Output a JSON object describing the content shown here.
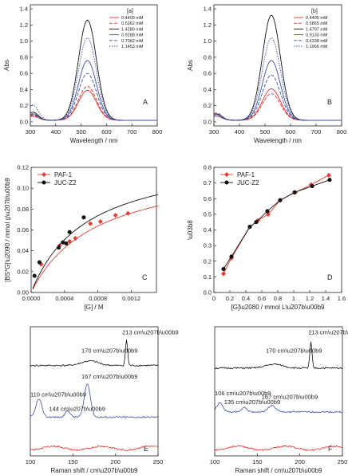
{
  "chart_data": [
    {
      "panel": "A",
      "type": "line",
      "title": "[a]",
      "xlabel": "Wavelength / nm",
      "ylabel": "Abs",
      "xlim": [
        300,
        800
      ],
      "ylim": [
        -0.05,
        1.45
      ],
      "xticks": [
        300,
        400,
        500,
        600,
        700,
        800
      ],
      "yticks": [
        0.0,
        0.2,
        0.4,
        0.6,
        0.8,
        1.0,
        1.2,
        1.4
      ],
      "legend_position": "top-right",
      "series": [
        {
          "name": "0.4409 mM",
          "color": "#e0302b",
          "dash": "solid",
          "peak_x": 525,
          "peak": 0.37,
          "base": 0.02,
          "shoulder": 0.05
        },
        {
          "name": "0.5362 mM",
          "color": "#e0302b",
          "dash": "dash",
          "peak_x": 525,
          "peak": 0.42,
          "base": 0.02,
          "shoulder": 0.06
        },
        {
          "name": "1.4289 mM",
          "color": "#111111",
          "dash": "solid",
          "peak_x": 525,
          "peak": 1.24,
          "base": 0.02,
          "shoulder": 0.1
        },
        {
          "name": "0.9288 mM",
          "color": "#3a4fa8",
          "dash": "solid",
          "peak_x": 525,
          "peak": 0.74,
          "base": 0.02,
          "shoulder": 0.08
        },
        {
          "name": "0.7082 mM",
          "color": "#3a4fa8",
          "dash": "dash",
          "peak_x": 525,
          "peak": 0.58,
          "base": 0.02,
          "shoulder": 0.07
        },
        {
          "name": "1.1453 mM",
          "color": "#3a4fa8",
          "dash": "dot",
          "peak_x": 525,
          "peak": 1.02,
          "base": 0.02,
          "shoulder": 0.19
        }
      ]
    },
    {
      "panel": "B",
      "type": "line",
      "title": "[b]",
      "xlabel": "Wavelength / nm",
      "ylabel": "Abs",
      "xlim": [
        300,
        800
      ],
      "ylim": [
        -0.05,
        1.45
      ],
      "xticks": [
        300,
        400,
        500,
        600,
        700,
        800
      ],
      "yticks": [
        0.0,
        0.2,
        0.4,
        0.6,
        0.8,
        1.0,
        1.2,
        1.4
      ],
      "legend_position": "top-right",
      "series": [
        {
          "name": "0.4405 mM",
          "color": "#e0302b",
          "dash": "solid",
          "peak_x": 525,
          "peak": 0.39,
          "base": 0.02,
          "shoulder": 0.05
        },
        {
          "name": "0.5865 mM",
          "color": "#e0302b",
          "dash": "dash",
          "peak_x": 525,
          "peak": 0.33,
          "base": 0.02,
          "shoulder": 0.09
        },
        {
          "name": "1.4797 mM",
          "color": "#111111",
          "dash": "solid",
          "peak_x": 525,
          "peak": 1.3,
          "base": 0.02,
          "shoulder": 0.07
        },
        {
          "name": "0.9133 mM",
          "color": "#3a4fa8",
          "dash": "solid",
          "peak_x": 525,
          "peak": 0.74,
          "base": 0.02,
          "shoulder": 0.08
        },
        {
          "name": "0.6338 mM",
          "color": "#3a4fa8",
          "dash": "dash",
          "peak_x": 525,
          "peak": 0.56,
          "base": 0.02,
          "shoulder": 0.07
        },
        {
          "name": "1.1966 mM",
          "color": "#3a4fa8",
          "dash": "dot",
          "peak_x": 525,
          "peak": 1.02,
          "base": 0.02,
          "shoulder": 0.05
        }
      ]
    },
    {
      "panel": "C",
      "type": "scatter",
      "xlabel": "[G] / M",
      "ylabel": "[BS*G]\\u2090 / mmol g\\u207b\\u00b9",
      "xlim": [
        0,
        0.0015
      ],
      "ylim": [
        0,
        0.12
      ],
      "xticks": [
        0.0,
        0.0004,
        0.0008,
        0.0012
      ],
      "xtick_labels": [
        "0.0000",
        "0.0004",
        "0.0008",
        "0.0012"
      ],
      "yticks": [
        0.0,
        0.02,
        0.04,
        0.06,
        0.08,
        0.1,
        0.12
      ],
      "ytick_labels": [
        "0.00",
        "0.02",
        "0.04",
        "0.06",
        "0.08",
        "0.10",
        "0.12"
      ],
      "legend_position": "top-left",
      "series": [
        {
          "name": "PAF-1",
          "color": "#e53b33",
          "marker": "diamond",
          "x": [
            0.00012,
            0.00034,
            0.00046,
            0.00053,
            0.00071,
            0.00083,
            0.00101,
            0.00116
          ],
          "y": [
            0.027,
            0.045,
            0.049,
            0.052,
            0.066,
            0.068,
            0.074,
            0.076
          ],
          "fit": {
            "qmax": 0.125,
            "K": 1300
          }
        },
        {
          "name": "JUC-Z2",
          "color": "#111111",
          "marker": "circle",
          "x": [
            4e-05,
            0.0001,
            0.00033,
            0.00038,
            0.00042,
            0.00046,
            0.00063
          ],
          "y": [
            0.016,
            0.029,
            0.043,
            0.048,
            0.047,
            0.058,
            0.072
          ],
          "fit": {
            "qmax": 0.135,
            "K": 1500
          }
        }
      ]
    },
    {
      "panel": "D",
      "type": "scatter",
      "xlabel": "[G]\\u2080 / mmol L\\u207b\\u00b9",
      "ylabel": "\\u03b8",
      "xlim": [
        0,
        1.6
      ],
      "ylim": [
        0,
        0.8
      ],
      "xticks": [
        0.0,
        0.2,
        0.4,
        0.6,
        0.8,
        1.0,
        1.2,
        1.4,
        1.6
      ],
      "yticks": [
        0.0,
        0.1,
        0.2,
        0.3,
        0.4,
        0.5,
        0.6,
        0.7,
        0.8
      ],
      "legend_position": "top-left",
      "series": [
        {
          "name": "PAF-1",
          "color": "#e53b33",
          "marker": "diamond",
          "x": [
            0.12,
            0.22,
            0.45,
            0.55,
            0.68,
            0.83,
            1.02,
            1.22,
            1.44
          ],
          "y": [
            0.12,
            0.22,
            0.42,
            0.46,
            0.5,
            0.59,
            0.64,
            0.69,
            0.75
          ]
        },
        {
          "name": "JUC-Z2",
          "color": "#111111",
          "marker": "circle",
          "x": [
            0.12,
            0.22,
            0.45,
            0.53,
            0.67,
            0.83,
            1.01,
            1.23,
            1.45
          ],
          "y": [
            0.15,
            0.23,
            0.42,
            0.45,
            0.52,
            0.59,
            0.64,
            0.68,
            0.72
          ]
        }
      ]
    },
    {
      "panel": "E",
      "type": "line",
      "xlabel": "Raman shift / cm\\u207b\\u00b9",
      "xlim": [
        100,
        250
      ],
      "xticks": [
        100,
        150,
        200,
        250
      ],
      "annotations": [
        "213 cm\\u207b\\u00b9",
        "170 cm\\u207b\\u00b9",
        "167 cm\\u207b\\u00b9",
        "110 cm\\u207b\\u00b9",
        "144 cm\\u207b\\u00b9"
      ],
      "series": [
        {
          "color": "#111111",
          "baseline": 0.7,
          "peaks": [
            [
              170,
              0.035,
              14
            ],
            [
              213,
              0.2,
              1.8
            ]
          ]
        },
        {
          "color": "#3a4fa8",
          "baseline": 0.3,
          "peaks": [
            [
              110,
              0.14,
              5
            ],
            [
              144,
              0.05,
              4
            ],
            [
              167,
              0.26,
              5
            ]
          ]
        },
        {
          "color": "#e0302b",
          "baseline": 0.06,
          "peaks": []
        }
      ]
    },
    {
      "panel": "F",
      "type": "line",
      "xlabel": "Raman shift / cm\\u207b\\u00b9",
      "xlim": [
        100,
        250
      ],
      "xticks": [
        100,
        150,
        200,
        250
      ],
      "annotations": [
        "213 cm\\u207b\\u00b9",
        "170 cm\\u207b\\u00b9",
        "106 cm\\u207b\\u00b9",
        "135 cm\\u207b\\u00b9",
        "167 cm\\u207b\\u00b9"
      ],
      "series": [
        {
          "color": "#111111",
          "baseline": 0.68,
          "peaks": [
            [
              170,
              0.03,
              14
            ],
            [
              213,
              0.2,
              1.8
            ]
          ]
        },
        {
          "color": "#3a4fa8",
          "baseline": 0.34,
          "peaks": [
            [
              106,
              0.07,
              5
            ],
            [
              135,
              0.04,
              4
            ],
            [
              167,
              0.05,
              6
            ]
          ]
        },
        {
          "color": "#e0302b",
          "baseline": 0.06,
          "peaks": []
        }
      ]
    }
  ]
}
